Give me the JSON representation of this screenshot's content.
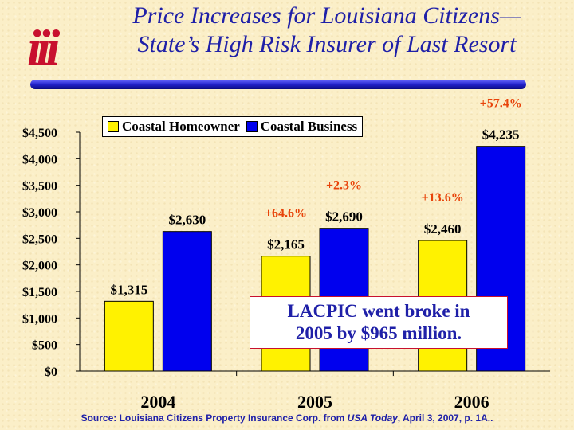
{
  "logo_text": "iii",
  "title_line1": "Price Increases for Louisiana Citizens—",
  "title_line2": "State’s High Risk Insurer of Last Resort",
  "callout": {
    "line1": "LACPIC went broke in",
    "line2": "2005 by $965 million."
  },
  "source": {
    "prefix": "Source: Louisiana Citizens Property Insurance Corp. from ",
    "italic": "USA Today",
    "suffix": ", April 3, 2007, p. 1A.."
  },
  "colors": {
    "homeowner": "#fff200",
    "business": "#0000ee",
    "title": "#1f20a8",
    "percent": "#e8440a",
    "logo": "#c8102e"
  },
  "chart_data": {
    "type": "bar",
    "categories": [
      "2004",
      "2005",
      "2006"
    ],
    "series": [
      {
        "name": "Coastal Homeowner",
        "values": [
          1315,
          2165,
          2460
        ],
        "labels": [
          "$1,315",
          "$2,165",
          "$2,460"
        ],
        "color": "#fff200"
      },
      {
        "name": "Coastal Business",
        "values": [
          2630,
          2690,
          4235
        ],
        "labels": [
          "$2,630",
          "$2,690",
          "$4,235"
        ],
        "color": "#0000ee"
      }
    ],
    "percent_changes": [
      {
        "text": "+64.6%",
        "category": "2005",
        "series": "Coastal Homeowner"
      },
      {
        "text": "+2.3%",
        "category": "2005",
        "series": "Coastal Business"
      },
      {
        "text": "+13.6%",
        "category": "2006",
        "series": "Coastal Homeowner"
      },
      {
        "text": "+57.4%",
        "category": "2006",
        "series": "Coastal Business"
      }
    ],
    "ylim": [
      0,
      4500
    ],
    "yticks": [
      0,
      500,
      1000,
      1500,
      2000,
      2500,
      3000,
      3500,
      4000,
      4500
    ],
    "ytick_labels": [
      "$0",
      "$500",
      "$1,000",
      "$1,500",
      "$2,000",
      "$2,500",
      "$3,000",
      "$3,500",
      "$4,000",
      "$4,500"
    ],
    "legend_position": "top-left",
    "grid": false
  }
}
